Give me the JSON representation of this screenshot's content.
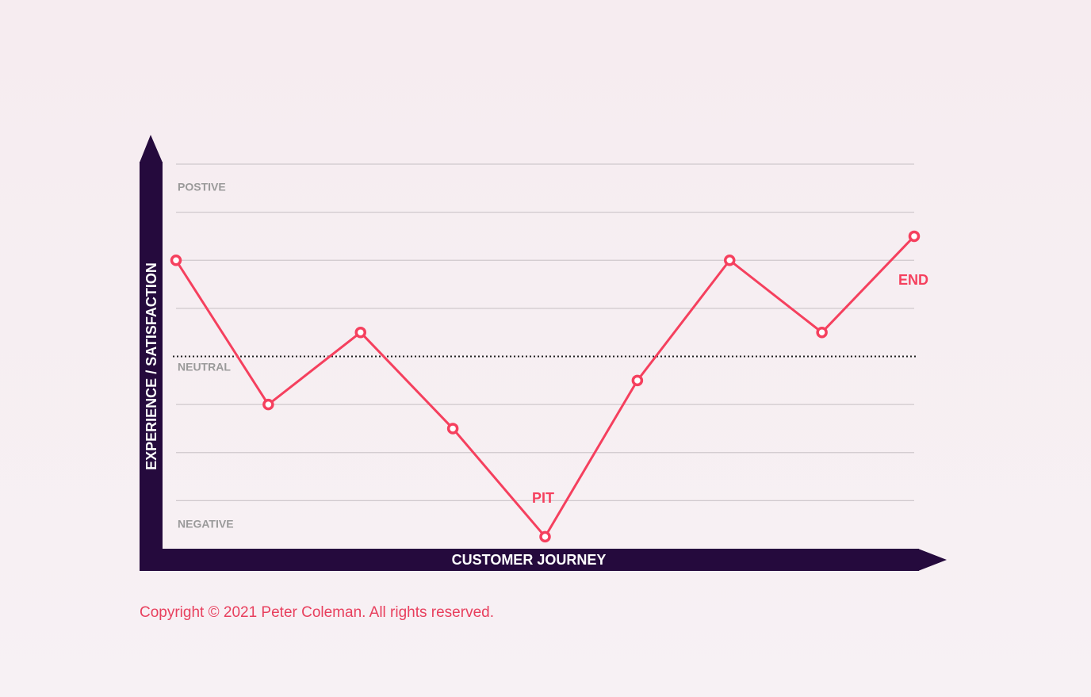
{
  "chart_data": {
    "type": "line",
    "x_label": "CUSTOMER JOURNEY",
    "y_label": "EXPERIENCE / SATISFACTION",
    "categories": [
      null,
      null,
      null,
      null,
      null,
      null,
      null,
      null,
      null
    ],
    "series": [
      {
        "name": null,
        "color": "#f5405e",
        "values": [
          2,
          -1,
          0.5,
          -1.5,
          -3.75,
          -0.5,
          2,
          0.5,
          2.5
        ]
      }
    ],
    "ylim": [
      -4,
      4
    ],
    "yticks": [
      -3,
      -2,
      -1,
      1,
      2,
      3,
      4
    ],
    "grid": true,
    "reference_line": {
      "value": 0,
      "label": "NEUTRAL"
    },
    "region_labels": [
      "POSTIVE",
      "NEGATIVE"
    ],
    "annotations": [
      "PIT",
      "END"
    ]
  },
  "footer": {
    "copyright": "Copyright © 2021 Peter Coleman. All rights reserved."
  }
}
